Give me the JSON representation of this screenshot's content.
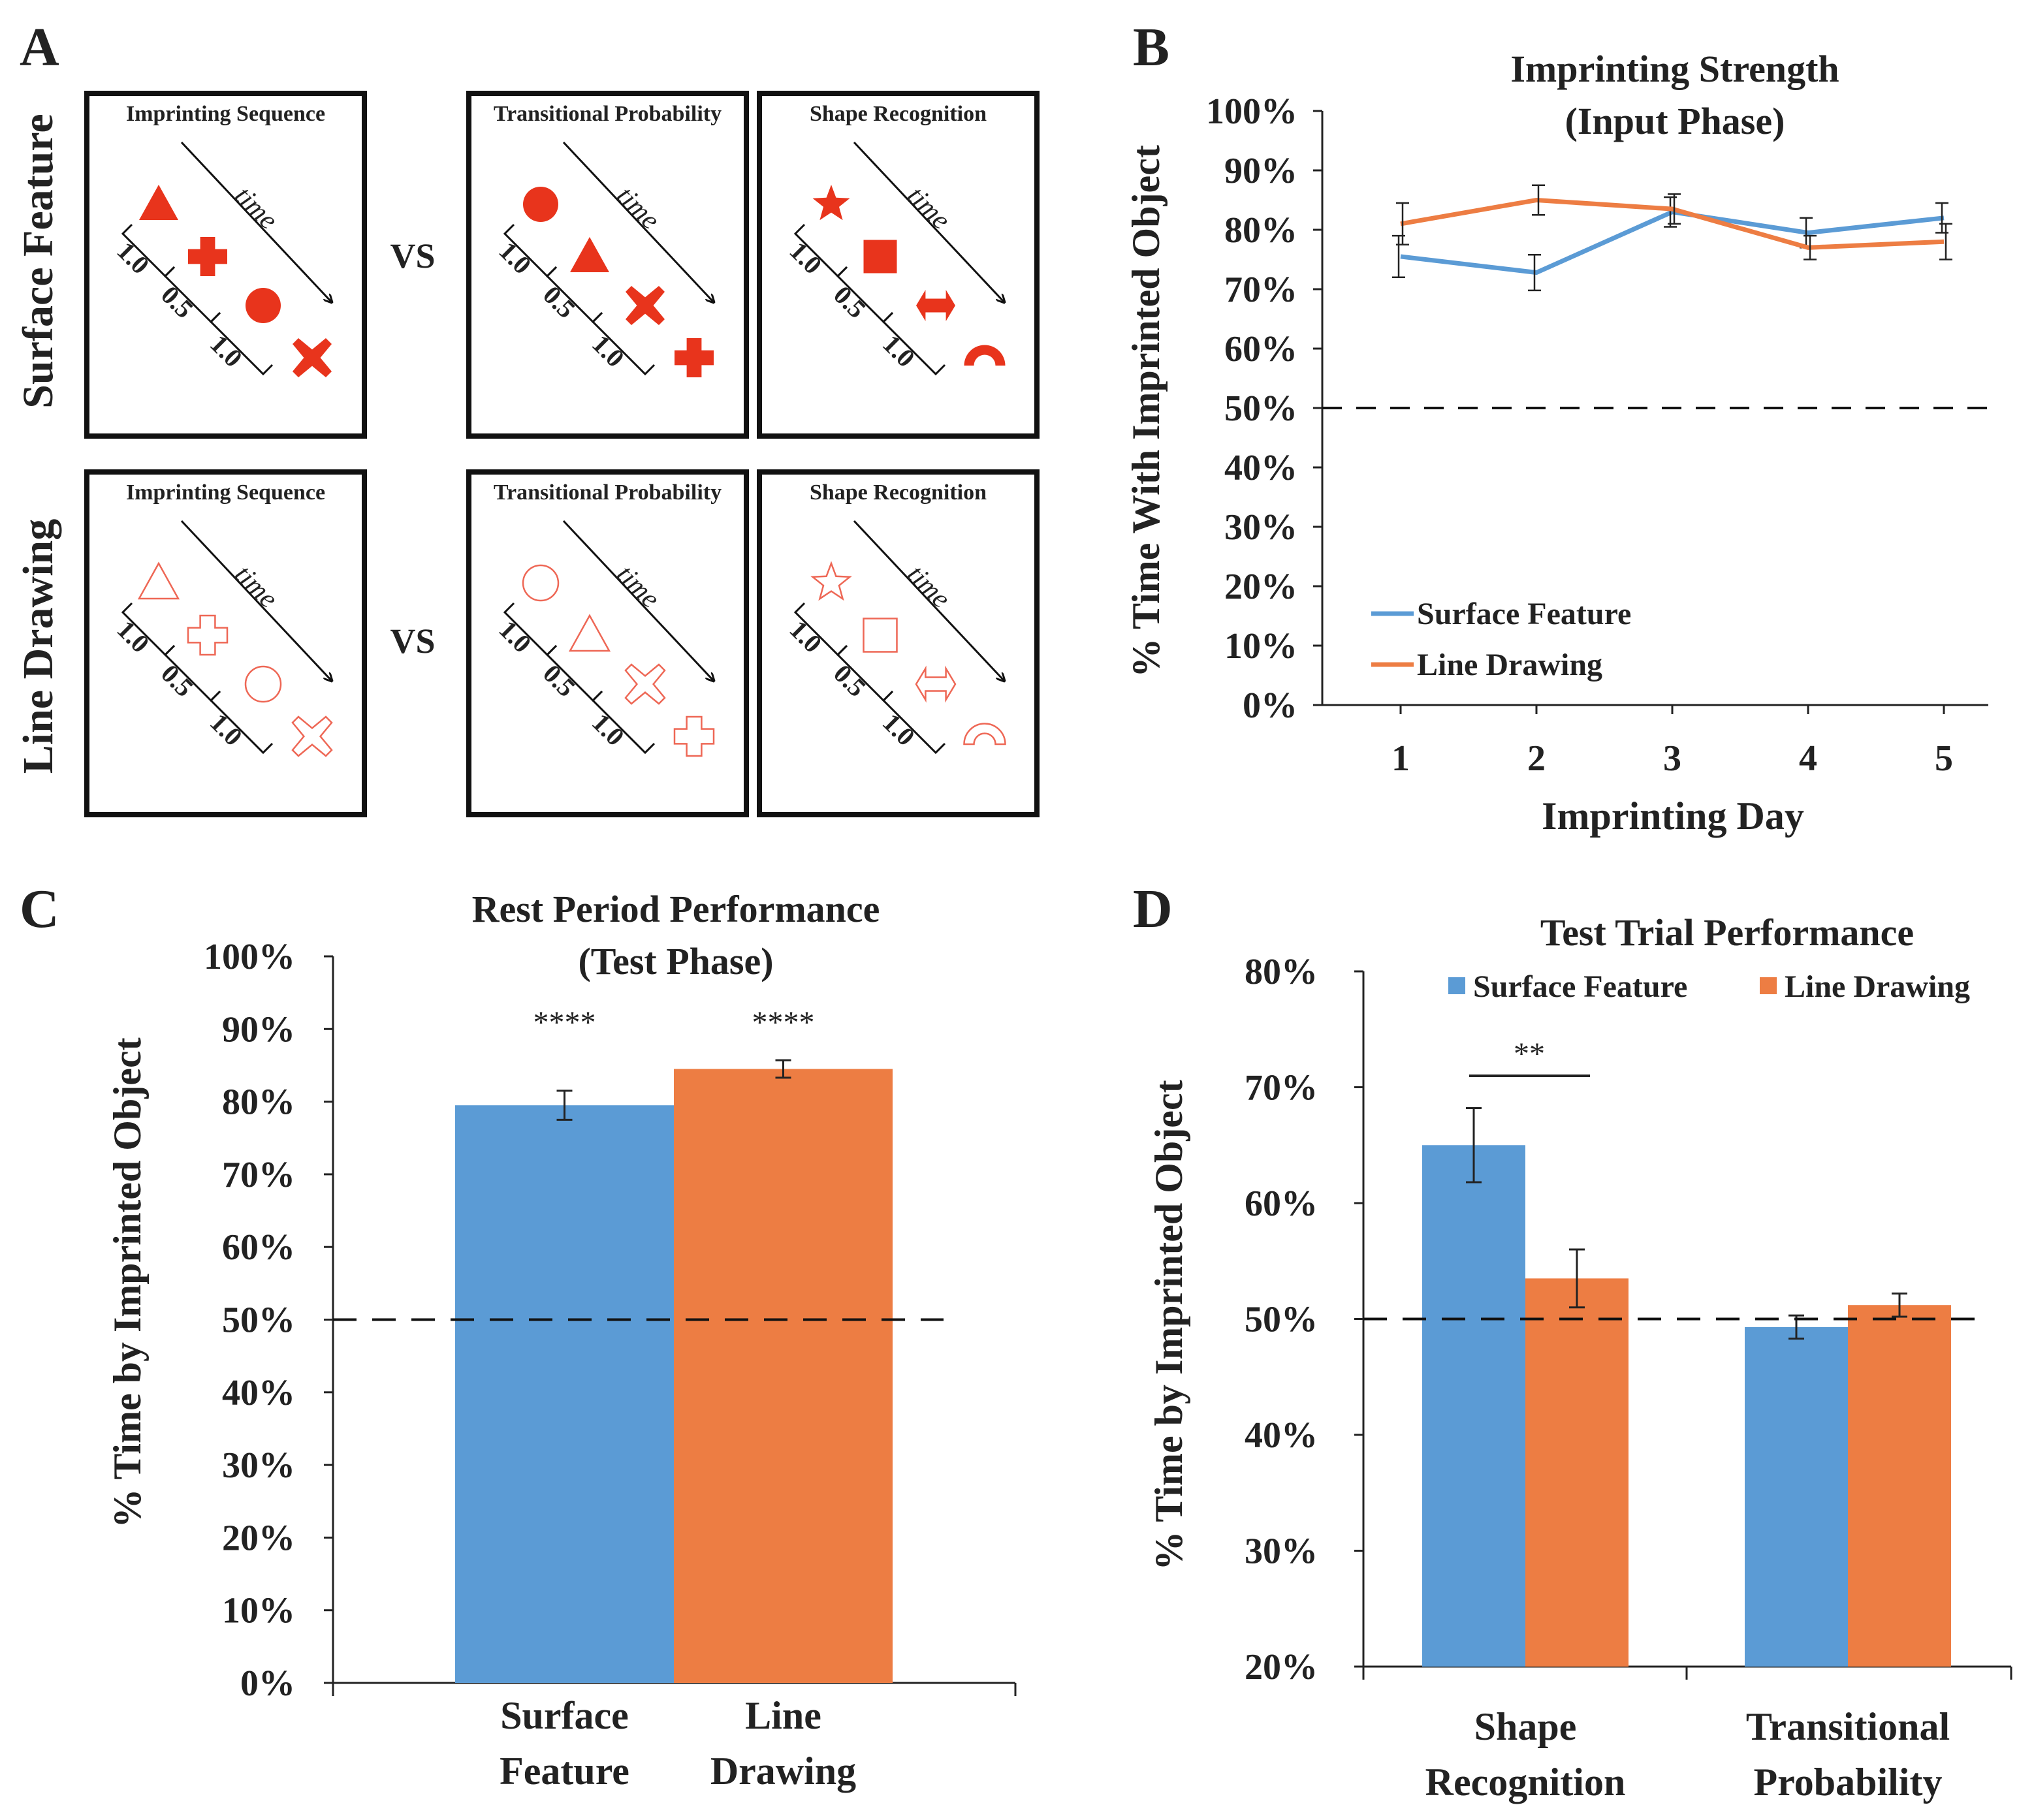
{
  "colors": {
    "surface": "#5b9bd5",
    "line": "#ed7d43",
    "shape_red": "#e8341c"
  },
  "panel_a": {
    "letter": "A",
    "vs": "VS",
    "rows": [
      {
        "label": "Surface Feature",
        "style": "filled"
      },
      {
        "label": "Line Drawing",
        "style": "outline"
      }
    ],
    "columns": [
      {
        "title": "Imprinting Sequence",
        "shapes": [
          "triangle-icon",
          "cross-icon",
          "circle-icon",
          "x-icon"
        ]
      },
      {
        "title": "Transitional Probability",
        "shapes": [
          "circle-icon",
          "triangle-icon",
          "x-icon",
          "cross-icon"
        ]
      },
      {
        "title": "Shape Recognition",
        "shapes": [
          "star-icon",
          "square-icon",
          "double-arrow-icon",
          "arch-icon"
        ]
      }
    ],
    "time_label": "time",
    "intervals": [
      "1.0",
      "0.5",
      "1.0"
    ]
  },
  "chart_data": [
    {
      "panel": "B",
      "type": "line",
      "title": "Imprinting Strength",
      "subtitle": "(Input Phase)",
      "xlabel": "Imprinting Day",
      "ylabel": "% Time With Imprinted Object",
      "x": [
        1,
        2,
        3,
        4,
        5
      ],
      "xticks": [
        "1",
        "2",
        "3",
        "4",
        "5"
      ],
      "ylim": [
        0,
        100
      ],
      "yticks": [
        "0%",
        "10%",
        "20%",
        "30%",
        "40%",
        "50%",
        "60%",
        "70%",
        "80%",
        "90%",
        "100%"
      ],
      "reference_line": 50,
      "legend_position": "bottom-left",
      "series": [
        {
          "name": "Surface Feature",
          "values": [
            75.5,
            72.8,
            83,
            79.5,
            82
          ],
          "errors": [
            3.5,
            3.0,
            2.5,
            2.5,
            2.5
          ]
        },
        {
          "name": "Line Drawing",
          "values": [
            81,
            85,
            83.5,
            77,
            78
          ],
          "errors": [
            3.5,
            2.5,
            2.5,
            2.0,
            3.0
          ]
        }
      ]
    },
    {
      "panel": "C",
      "type": "bar",
      "title": "Rest Period Performance",
      "subtitle": "(Test Phase)",
      "ylabel": "% Time by Imprinted Object",
      "categories": [
        [
          "Surface",
          "Feature"
        ],
        [
          "Line",
          "Drawing"
        ]
      ],
      "values": [
        79.5,
        84.5
      ],
      "errors": [
        2.0,
        1.2
      ],
      "significance": [
        "****",
        "****"
      ],
      "ylim": [
        0,
        100
      ],
      "yticks": [
        "0%",
        "10%",
        "20%",
        "30%",
        "40%",
        "50%",
        "60%",
        "70%",
        "80%",
        "90%",
        "100%"
      ],
      "reference_line": 50
    },
    {
      "panel": "D",
      "type": "bar",
      "title": "Test Trial Performance",
      "ylabel": "% Time by Imprinted Object",
      "categories": [
        [
          "Shape",
          "Recognition"
        ],
        [
          "Transitional",
          "Probability"
        ]
      ],
      "series": [
        {
          "name": "Surface Feature",
          "values": [
            65,
            49.3
          ],
          "errors": [
            3.2,
            1.0
          ]
        },
        {
          "name": "Line Drawing",
          "values": [
            53.5,
            51.2
          ],
          "errors": [
            2.5,
            1.0
          ]
        }
      ],
      "significance": {
        "group": 0,
        "label": "**"
      },
      "ylim": [
        20,
        80
      ],
      "yticks": [
        "20%",
        "30%",
        "40%",
        "50%",
        "60%",
        "70%",
        "80%"
      ],
      "reference_line": 50,
      "legend_position": "top"
    }
  ]
}
